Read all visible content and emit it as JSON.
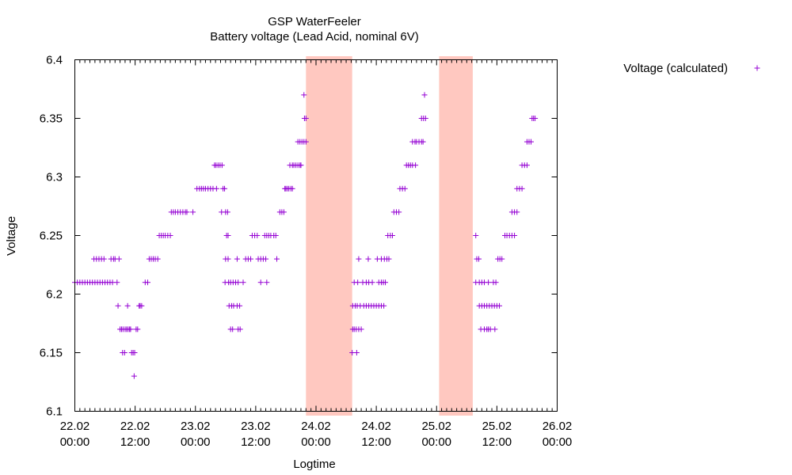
{
  "chart_data": {
    "type": "scatter",
    "title": "GSP WaterFeeler",
    "subtitle": "Battery voltage (Lead Acid, nominal 6V)",
    "xlabel": "Logtime",
    "ylabel": "Voltage",
    "xlim": [
      "22.02 00:00",
      "26.02 00:00"
    ],
    "ylim": [
      6.1,
      6.4
    ],
    "x_ticks": [
      {
        "date": "22.02",
        "time": "00:00",
        "hours": 0
      },
      {
        "date": "22.02",
        "time": "12:00",
        "hours": 12
      },
      {
        "date": "23.02",
        "time": "00:00",
        "hours": 24
      },
      {
        "date": "23.02",
        "time": "12:00",
        "hours": 36
      },
      {
        "date": "24.02",
        "time": "00:00",
        "hours": 48
      },
      {
        "date": "24.02",
        "time": "12:00",
        "hours": 60
      },
      {
        "date": "25.02",
        "time": "00:00",
        "hours": 72
      },
      {
        "date": "25.02",
        "time": "12:00",
        "hours": 84
      },
      {
        "date": "26.02",
        "time": "00:00",
        "hours": 96
      }
    ],
    "y_ticks": [
      "6.1",
      "6.15",
      "6.2",
      "6.25",
      "6.3",
      "6.35",
      "6.4"
    ],
    "grid": false,
    "legend_position": "top-right, outside plot",
    "series": [
      {
        "name": "Voltage (calculated)",
        "color": "#9400d3",
        "marker": "plus",
        "points": [
          [
            0.0,
            6.21
          ],
          [
            0.5,
            6.21
          ],
          [
            1.0,
            6.21
          ],
          [
            1.5,
            6.21
          ],
          [
            2.0,
            6.21
          ],
          [
            2.5,
            6.21
          ],
          [
            3.0,
            6.21
          ],
          [
            3.5,
            6.21
          ],
          [
            3.8,
            6.23
          ],
          [
            4.0,
            6.21
          ],
          [
            4.3,
            6.23
          ],
          [
            4.5,
            6.21
          ],
          [
            4.8,
            6.23
          ],
          [
            5.0,
            6.21
          ],
          [
            5.3,
            6.23
          ],
          [
            5.5,
            6.21
          ],
          [
            5.8,
            6.23
          ],
          [
            6.0,
            6.21
          ],
          [
            6.5,
            6.21
          ],
          [
            7.0,
            6.21
          ],
          [
            7.2,
            6.23
          ],
          [
            7.5,
            6.21
          ],
          [
            7.7,
            6.23
          ],
          [
            8.0,
            6.23
          ],
          [
            8.4,
            6.21
          ],
          [
            8.6,
            6.19
          ],
          [
            8.8,
            6.23
          ],
          [
            9.0,
            6.17
          ],
          [
            9.3,
            6.17
          ],
          [
            9.5,
            6.15
          ],
          [
            9.6,
            6.17
          ],
          [
            9.9,
            6.15
          ],
          [
            10.0,
            6.17
          ],
          [
            10.3,
            6.17
          ],
          [
            10.5,
            6.19
          ],
          [
            10.6,
            6.17
          ],
          [
            10.9,
            6.17
          ],
          [
            11.1,
            6.17
          ],
          [
            11.3,
            6.15
          ],
          [
            11.6,
            6.15
          ],
          [
            11.8,
            6.13
          ],
          [
            11.9,
            6.15
          ],
          [
            12.2,
            6.17
          ],
          [
            12.5,
            6.17
          ],
          [
            12.8,
            6.19
          ],
          [
            13.0,
            6.19
          ],
          [
            13.3,
            6.19
          ],
          [
            14.0,
            6.21
          ],
          [
            14.5,
            6.21
          ],
          [
            14.8,
            6.23
          ],
          [
            15.2,
            6.23
          ],
          [
            15.6,
            6.23
          ],
          [
            16.0,
            6.23
          ],
          [
            16.5,
            6.23
          ],
          [
            16.8,
            6.25
          ],
          [
            17.2,
            6.25
          ],
          [
            17.6,
            6.25
          ],
          [
            18.0,
            6.25
          ],
          [
            18.5,
            6.25
          ],
          [
            19.0,
            6.25
          ],
          [
            19.2,
            6.27
          ],
          [
            19.6,
            6.27
          ],
          [
            20.0,
            6.27
          ],
          [
            20.5,
            6.27
          ],
          [
            21.0,
            6.27
          ],
          [
            21.5,
            6.27
          ],
          [
            22.0,
            6.27
          ],
          [
            22.3,
            6.27
          ],
          [
            23.5,
            6.27
          ],
          [
            24.3,
            6.29
          ],
          [
            24.8,
            6.29
          ],
          [
            25.2,
            6.29
          ],
          [
            25.6,
            6.29
          ],
          [
            26.0,
            6.29
          ],
          [
            26.5,
            6.29
          ],
          [
            27.0,
            6.29
          ],
          [
            27.5,
            6.29
          ],
          [
            27.8,
            6.31
          ],
          [
            28.1,
            6.31
          ],
          [
            28.5,
            6.31
          ],
          [
            28.9,
            6.31
          ],
          [
            29.3,
            6.31
          ],
          [
            28.2,
            6.29
          ],
          [
            29.2,
            6.27
          ],
          [
            29.5,
            6.29
          ],
          [
            29.8,
            6.29
          ],
          [
            30.0,
            6.27
          ],
          [
            30.2,
            6.25
          ],
          [
            30.4,
            6.27
          ],
          [
            30.5,
            6.25
          ],
          [
            30.0,
            6.23
          ],
          [
            30.5,
            6.23
          ],
          [
            29.9,
            6.21
          ],
          [
            30.6,
            6.21
          ],
          [
            30.7,
            6.19
          ],
          [
            31.0,
            6.21
          ],
          [
            31.2,
            6.19
          ],
          [
            31.5,
            6.21
          ],
          [
            31.6,
            6.19
          ],
          [
            32.0,
            6.21
          ],
          [
            32.3,
            6.19
          ],
          [
            32.5,
            6.21
          ],
          [
            32.8,
            6.19
          ],
          [
            31.0,
            6.17
          ],
          [
            31.4,
            6.17
          ],
          [
            32.5,
            6.17
          ],
          [
            32.9,
            6.17
          ],
          [
            32.3,
            6.23
          ],
          [
            33.5,
            6.21
          ],
          [
            34.0,
            6.23
          ],
          [
            34.5,
            6.23
          ],
          [
            35.0,
            6.23
          ],
          [
            35.3,
            6.25
          ],
          [
            35.8,
            6.25
          ],
          [
            36.3,
            6.25
          ],
          [
            36.5,
            6.23
          ],
          [
            37.0,
            6.23
          ],
          [
            37.0,
            6.21
          ],
          [
            38.2,
            6.21
          ],
          [
            37.5,
            6.23
          ],
          [
            37.8,
            6.25
          ],
          [
            38.0,
            6.23
          ],
          [
            38.2,
            6.25
          ],
          [
            38.6,
            6.25
          ],
          [
            39.0,
            6.25
          ],
          [
            39.6,
            6.25
          ],
          [
            40.0,
            6.25
          ],
          [
            40.2,
            6.23
          ],
          [
            40.8,
            6.27
          ],
          [
            41.2,
            6.27
          ],
          [
            41.6,
            6.27
          ],
          [
            41.8,
            6.29
          ],
          [
            42.0,
            6.29
          ],
          [
            42.3,
            6.29
          ],
          [
            42.6,
            6.29
          ],
          [
            43.0,
            6.29
          ],
          [
            43.3,
            6.29
          ],
          [
            42.8,
            6.31
          ],
          [
            43.3,
            6.31
          ],
          [
            43.6,
            6.31
          ],
          [
            44.0,
            6.31
          ],
          [
            44.4,
            6.31
          ],
          [
            44.8,
            6.31
          ],
          [
            45.0,
            6.31
          ],
          [
            44.4,
            6.33
          ],
          [
            44.8,
            6.33
          ],
          [
            45.2,
            6.33
          ],
          [
            45.6,
            6.33
          ],
          [
            46.0,
            6.33
          ],
          [
            45.7,
            6.35
          ],
          [
            45.6,
            6.37
          ],
          [
            46.0,
            6.35
          ],
          [
            55.2,
            6.15
          ],
          [
            56.1,
            6.15
          ],
          [
            55.3,
            6.17
          ],
          [
            55.6,
            6.17
          ],
          [
            56.0,
            6.17
          ],
          [
            56.5,
            6.17
          ],
          [
            57.0,
            6.17
          ],
          [
            55.3,
            6.19
          ],
          [
            55.8,
            6.19
          ],
          [
            56.2,
            6.19
          ],
          [
            56.8,
            6.19
          ],
          [
            57.5,
            6.19
          ],
          [
            58.0,
            6.19
          ],
          [
            58.5,
            6.19
          ],
          [
            59.0,
            6.19
          ],
          [
            59.5,
            6.19
          ],
          [
            60.0,
            6.19
          ],
          [
            60.5,
            6.19
          ],
          [
            61.0,
            6.19
          ],
          [
            61.5,
            6.19
          ],
          [
            55.6,
            6.21
          ],
          [
            56.3,
            6.21
          ],
          [
            57.3,
            6.21
          ],
          [
            58.0,
            6.21
          ],
          [
            58.5,
            6.21
          ],
          [
            59.2,
            6.21
          ],
          [
            60.5,
            6.21
          ],
          [
            61.0,
            6.21
          ],
          [
            61.4,
            6.21
          ],
          [
            61.8,
            6.21
          ],
          [
            56.5,
            6.23
          ],
          [
            58.4,
            6.23
          ],
          [
            60.2,
            6.23
          ],
          [
            61.0,
            6.23
          ],
          [
            61.6,
            6.23
          ],
          [
            62.1,
            6.23
          ],
          [
            62.5,
            6.23
          ],
          [
            62.3,
            6.25
          ],
          [
            62.8,
            6.25
          ],
          [
            63.2,
            6.25
          ],
          [
            63.5,
            6.27
          ],
          [
            64.0,
            6.27
          ],
          [
            64.5,
            6.27
          ],
          [
            64.7,
            6.29
          ],
          [
            65.2,
            6.29
          ],
          [
            65.7,
            6.29
          ],
          [
            66.0,
            6.31
          ],
          [
            66.4,
            6.31
          ],
          [
            66.8,
            6.31
          ],
          [
            67.2,
            6.31
          ],
          [
            67.8,
            6.31
          ],
          [
            67.2,
            6.33
          ],
          [
            67.7,
            6.33
          ],
          [
            68.0,
            6.33
          ],
          [
            68.5,
            6.33
          ],
          [
            69.0,
            6.33
          ],
          [
            69.0,
            6.35
          ],
          [
            69.4,
            6.35
          ],
          [
            69.8,
            6.35
          ],
          [
            69.6,
            6.37
          ],
          [
            69.3,
            6.33
          ],
          [
            79.8,
            6.25
          ],
          [
            80.0,
            6.23
          ],
          [
            80.4,
            6.23
          ],
          [
            79.8,
            6.21
          ],
          [
            80.5,
            6.21
          ],
          [
            81.0,
            6.21
          ],
          [
            81.5,
            6.21
          ],
          [
            82.3,
            6.21
          ],
          [
            83.3,
            6.21
          ],
          [
            80.5,
            6.19
          ],
          [
            81.0,
            6.19
          ],
          [
            81.5,
            6.19
          ],
          [
            82.0,
            6.19
          ],
          [
            82.5,
            6.19
          ],
          [
            83.0,
            6.19
          ],
          [
            83.5,
            6.19
          ],
          [
            84.0,
            6.19
          ],
          [
            84.5,
            6.19
          ],
          [
            80.8,
            6.17
          ],
          [
            81.5,
            6.17
          ],
          [
            82.0,
            6.17
          ],
          [
            82.3,
            6.17
          ],
          [
            82.7,
            6.17
          ],
          [
            83.6,
            6.17
          ],
          [
            83.8,
            6.21
          ],
          [
            84.2,
            6.23
          ],
          [
            84.6,
            6.23
          ],
          [
            85.0,
            6.23
          ],
          [
            85.6,
            6.25
          ],
          [
            86.0,
            6.25
          ],
          [
            86.5,
            6.25
          ],
          [
            87.0,
            6.25
          ],
          [
            87.5,
            6.25
          ],
          [
            87.0,
            6.27
          ],
          [
            87.5,
            6.27
          ],
          [
            88.0,
            6.27
          ],
          [
            88.0,
            6.29
          ],
          [
            88.5,
            6.29
          ],
          [
            89.0,
            6.29
          ],
          [
            89.0,
            6.31
          ],
          [
            89.5,
            6.31
          ],
          [
            90.0,
            6.31
          ],
          [
            90.0,
            6.33
          ],
          [
            90.4,
            6.33
          ],
          [
            90.8,
            6.33
          ],
          [
            91.0,
            6.35
          ],
          [
            91.3,
            6.35
          ],
          [
            91.6,
            6.35
          ]
        ]
      }
    ],
    "highlight_bands": [
      {
        "from": 46.0,
        "to": 55.2,
        "color": "#ffc8c0"
      },
      {
        "from": 72.5,
        "to": 79.2,
        "color": "#ffc8c0"
      }
    ]
  }
}
